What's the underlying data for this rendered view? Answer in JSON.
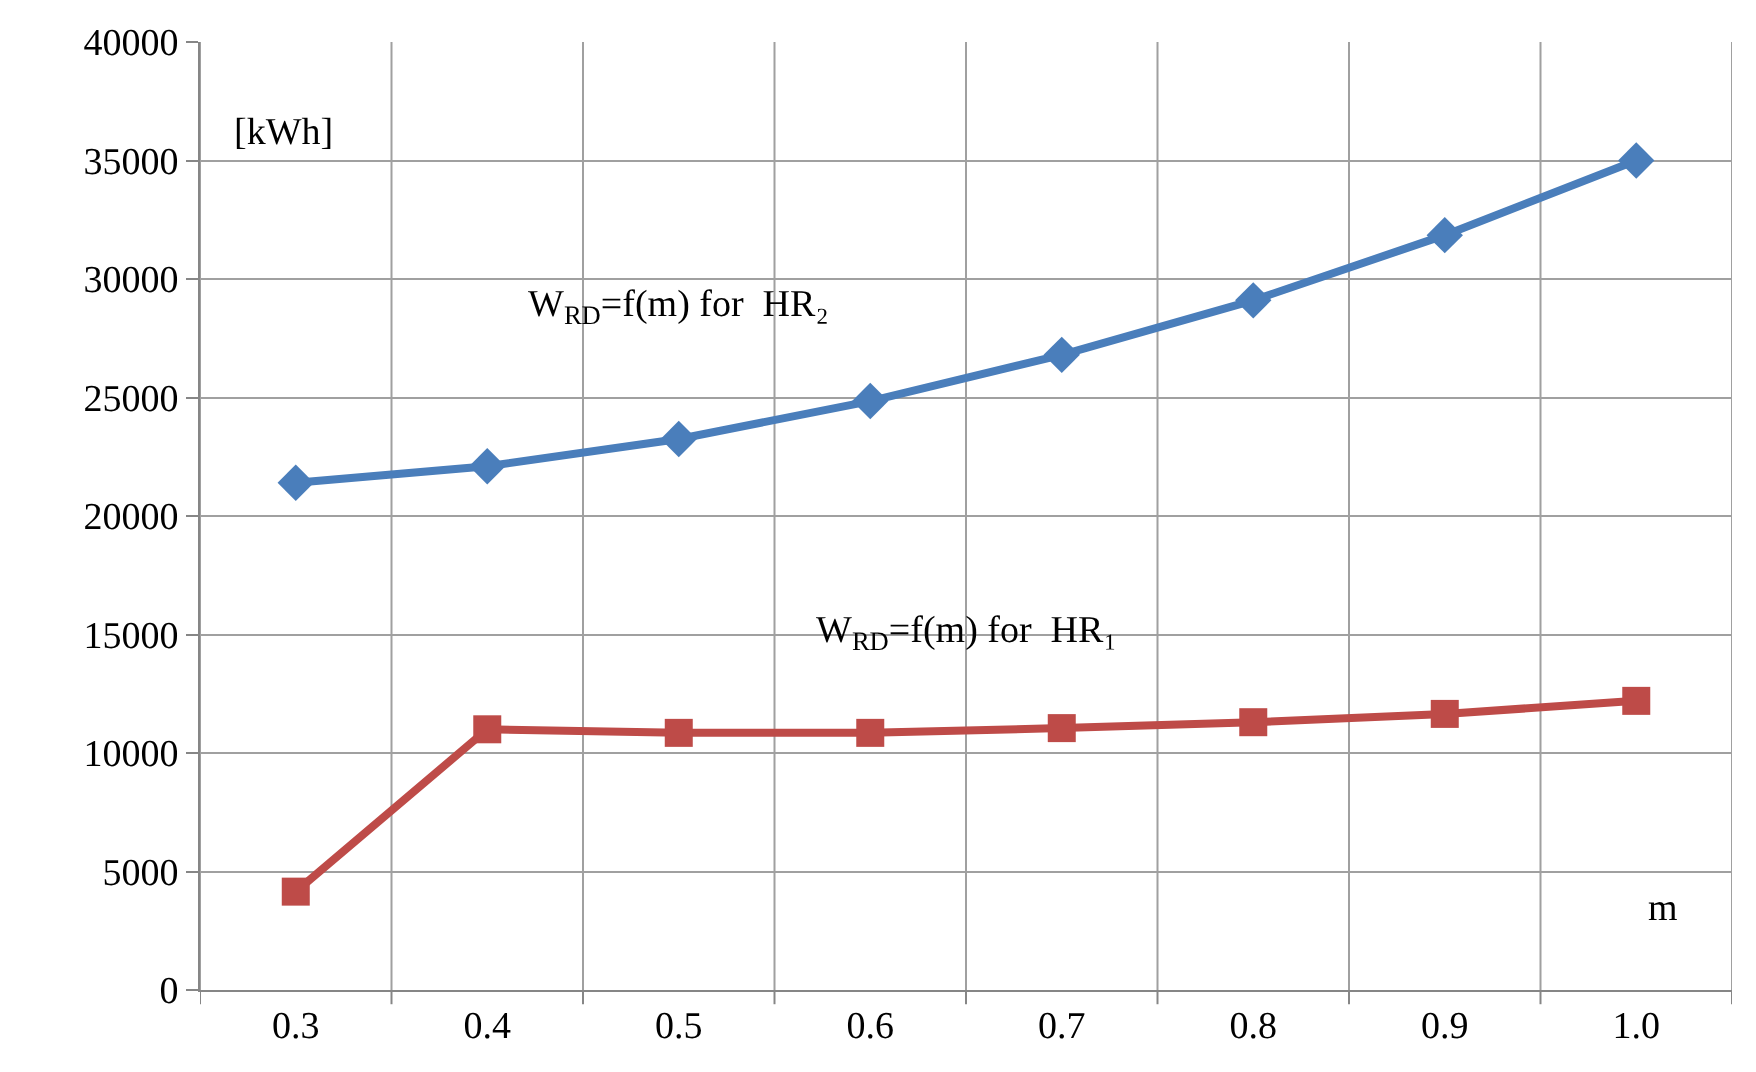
{
  "chart_data": {
    "type": "line",
    "xlabel": "m",
    "ylabel": "[kWh]",
    "categories": [
      "0.3",
      "0.4",
      "0.5",
      "0.6",
      "0.7",
      "0.8",
      "0.9",
      "1.0"
    ],
    "series": [
      {
        "name": "W$_{RD}$=f(m) for  HR₂",
        "color": "#4a7ebb",
        "marker": "diamond",
        "values": [
          21400,
          22100,
          23250,
          24850,
          26800,
          29100,
          31850,
          35000
        ]
      },
      {
        "name": "W$_{RD}$=f(m) for  HR₁",
        "color": "#be4b48",
        "marker": "square",
        "values": [
          4150,
          11000,
          10850,
          10850,
          11050,
          11300,
          11650,
          12200
        ]
      }
    ],
    "ylim": [
      0,
      40000
    ],
    "yticks": [
      0,
      5000,
      10000,
      15000,
      20000,
      25000,
      30000,
      35000,
      40000
    ],
    "grid": true,
    "legend": false
  }
}
